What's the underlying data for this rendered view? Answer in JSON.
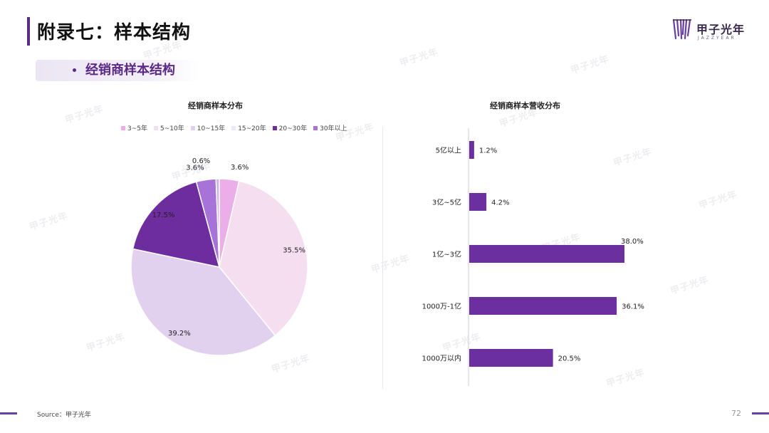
{
  "page": {
    "title": "附录七：样本结构",
    "section": "经销商样本结构",
    "source": "Source：甲子光年",
    "page_number": "72"
  },
  "logo": {
    "name": "甲子光年",
    "sub": "JAZZYEAR"
  },
  "watermark_text": "甲子光年",
  "colors": {
    "accent": "#5b2a86",
    "bar": "#6b2fa0",
    "footer": "#6b3fa0"
  },
  "chart_data": [
    {
      "type": "pie",
      "title": "经销商样本分布",
      "legend_position": "top",
      "slices": [
        {
          "label": "3~5年",
          "value": 3.6,
          "display": "3.6%",
          "color": "#ecaee8"
        },
        {
          "label": "5~10年",
          "value": 35.5,
          "display": "35.5%",
          "color": "#f6def1"
        },
        {
          "label": "10~15年",
          "value": 39.2,
          "display": "39.2%",
          "color": "#e2d1ee"
        },
        {
          "label": "15~20年",
          "value": 0.0,
          "display": "",
          "color": "#efe6f6"
        },
        {
          "label": "20~30年",
          "value": 17.5,
          "display": "17.5%",
          "color": "#6d2d9e"
        },
        {
          "label": "30年以上",
          "value": 3.6,
          "display": "3.6%",
          "color": "#a873d8"
        },
        {
          "label": "",
          "value": 0.6,
          "display": "0.6%",
          "color": "#c9b5e6"
        }
      ]
    },
    {
      "type": "bar",
      "orientation": "horizontal",
      "title": "经销商样本营收分布",
      "categories": [
        "5亿以上",
        "3亿~5亿",
        "1亿~3亿",
        "1000万-1亿",
        "1000万以内"
      ],
      "values": [
        1.2,
        4.2,
        38.0,
        36.1,
        20.5
      ],
      "value_labels": [
        "1.2%",
        "4.2%",
        "38.0%",
        "36.1%",
        "20.5%"
      ],
      "xlim": [
        0,
        38.0
      ],
      "color": "#6b2fa0"
    }
  ]
}
